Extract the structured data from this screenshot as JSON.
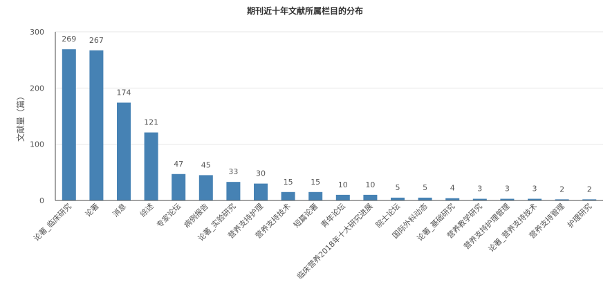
{
  "chart_data": {
    "type": "bar",
    "title": "期刊近十年文献所属栏目的分布",
    "xlabel": "",
    "ylabel": "文献量（篇）",
    "ylim": [
      0,
      300
    ],
    "yticks": [
      0,
      100,
      200,
      300
    ],
    "grid": true,
    "legend": "none",
    "bar_color": "#4682b4",
    "categories": [
      "论著_临床研究",
      "论著",
      "消息",
      "综述",
      "专家论坛",
      "病例报告",
      "论著_实验研究",
      "营养支持护理",
      "营养支持技术",
      "短篇论著",
      "青年论坛",
      "临床营养2018年十大研究进展",
      "院士论坛",
      "国际外科动态",
      "论著_基础研究",
      "营养教学研究",
      "营养支持护理管理",
      "论著_营养支持技术",
      "营养支持管理",
      "护理研究"
    ],
    "values": [
      269,
      267,
      174,
      121,
      47,
      45,
      33,
      30,
      15,
      15,
      10,
      10,
      5,
      5,
      4,
      3,
      3,
      3,
      2,
      2
    ]
  }
}
